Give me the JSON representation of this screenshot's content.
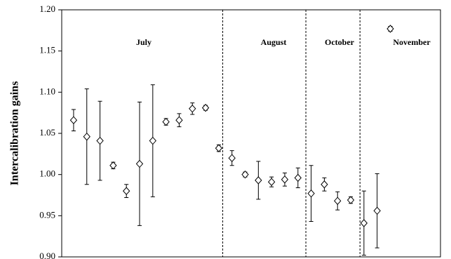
{
  "chart_data": {
    "type": "scatter",
    "ylabel": "Intercalibration gains",
    "annotations": [
      "July",
      "August",
      "October",
      "November"
    ],
    "dividers": [
      12.3,
      18.6,
      22.7
    ],
    "series": [
      {
        "color": "#000000",
        "x": [
          1,
          2,
          3,
          4,
          5,
          6,
          7,
          8,
          9,
          10,
          11,
          12,
          13,
          14,
          15,
          16,
          17,
          18,
          19,
          20,
          21,
          22,
          23,
          24,
          25
        ],
        "values": [
          1.066,
          1.046,
          1.041,
          1.011,
          0.98,
          1.013,
          1.041,
          1.064,
          1.066,
          1.08,
          1.081,
          1.032,
          1.02,
          1.0,
          0.993,
          0.991,
          0.994,
          0.996,
          0.977,
          0.988,
          0.968,
          0.969,
          0.941,
          0.956,
          1.177
        ],
        "errors": [
          0.013,
          0.058,
          0.048,
          0.004,
          0.008,
          0.075,
          0.068,
          0.004,
          0.008,
          0.007,
          0.003,
          0.004,
          0.009,
          0.003,
          0.023,
          0.006,
          0.008,
          0.012,
          0.034,
          0.008,
          0.011,
          0.004,
          0.039,
          0.045,
          0.003
        ]
      }
    ],
    "xlim": [
      0.1,
      28.8
    ],
    "ylim": [
      0.9,
      1.2
    ],
    "yticks": [
      {
        "value": 0.9,
        "label": "0.90"
      },
      0.95,
      {
        "value": 1.0,
        "label": "1.00"
      },
      1.05,
      {
        "value": 1.1,
        "label": "1.10"
      },
      1.15,
      {
        "value": 1.2,
        "label": "1.20"
      }
    ]
  }
}
